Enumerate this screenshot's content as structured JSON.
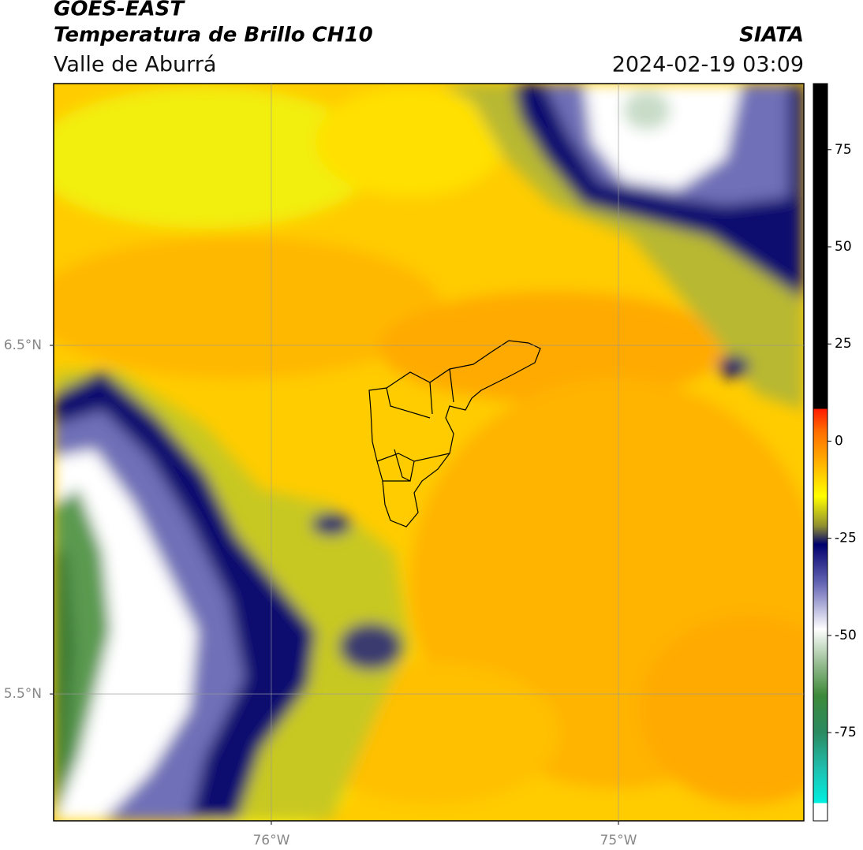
{
  "header": {
    "title": "GOES-EAST",
    "subtitle": "Temperatura de Brillo CH10",
    "region": "Valle de Aburrá",
    "source": "SIATA",
    "timestamp": "2024-02-19 03:09"
  },
  "map": {
    "lon_range": [
      -76.627,
      -74.466
    ],
    "lat_range": [
      5.136,
      7.251
    ],
    "lat_ticks": [
      {
        "value": 6.5,
        "label": "6.5°N"
      },
      {
        "value": 5.5,
        "label": "5.5°N"
      }
    ],
    "lon_ticks": [
      {
        "value": -76,
        "label": "76°W"
      },
      {
        "value": -75,
        "label": "75°W"
      }
    ]
  },
  "colorbar": {
    "range": [
      -97.7,
      92
    ],
    "ticks": [
      75,
      50,
      25,
      0,
      -25,
      -50,
      -75
    ]
  }
}
